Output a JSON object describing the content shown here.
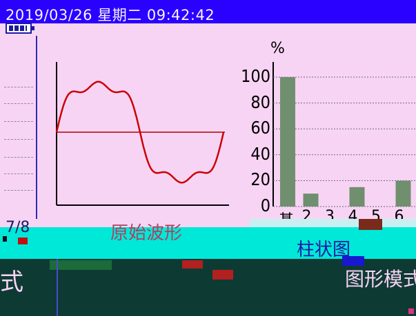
{
  "status_bar": {
    "datetime": "2019/03/26 星期二 09:42:42",
    "datetime_partial": "2019/03/26 星期二 09:42:42"
  },
  "icons": {
    "battery": "battery-icon"
  },
  "waveform": {
    "label": "原始波形"
  },
  "chart_data": {
    "type": "bar",
    "title": "",
    "ylabel": "%",
    "ylim": [
      0,
      100
    ],
    "yticks": [
      "0",
      "20",
      "40",
      "60",
      "80",
      "100"
    ],
    "categories": [
      "基",
      "2",
      "3",
      "4",
      "5",
      "6"
    ],
    "values": [
      100,
      10,
      0,
      15,
      0,
      20
    ],
    "bar_color": "#6f8f6f"
  },
  "bottom": {
    "tab_bar_chart": "柱状图",
    "tab_graphic_mode": "图形模式",
    "left_code": "7/8",
    "left_glyph": "式"
  },
  "colors": {
    "background": "#f8d4f4",
    "status_bar": "#2a00ff",
    "wave": "#cc0000",
    "glitch_cyan": "#00e8d8",
    "glitch_dark": "#0e3a34"
  }
}
